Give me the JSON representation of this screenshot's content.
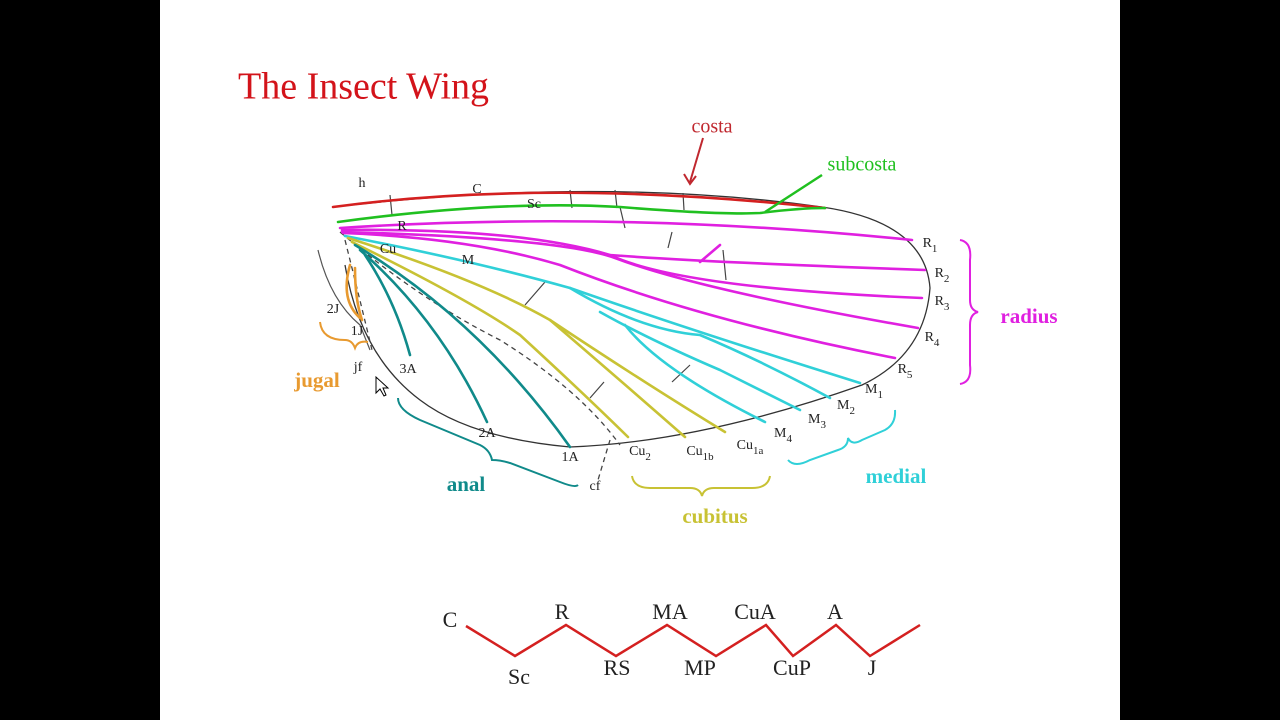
{
  "title": "The Insect Wing",
  "callouts": [
    "costa",
    "subcosta"
  ],
  "vein_groups": [
    "radius",
    "jugal",
    "anal",
    "cubitus",
    "medial"
  ],
  "wing_labels": [
    "h",
    "C",
    "Sc",
    "R",
    "M",
    "Cu",
    {
      "main": "R",
      "sub": "1"
    },
    {
      "main": "R",
      "sub": "2"
    },
    {
      "main": "R",
      "sub": "3"
    },
    {
      "main": "R",
      "sub": "4"
    },
    {
      "main": "R",
      "sub": "5"
    },
    {
      "main": "M",
      "sub": "1"
    },
    {
      "main": "M",
      "sub": "2"
    },
    {
      "main": "M",
      "sub": "3"
    },
    {
      "main": "M",
      "sub": "4"
    },
    {
      "main": "Cu",
      "sub": "1a"
    },
    {
      "main": "Cu",
      "sub": "1b"
    },
    {
      "main": "Cu",
      "sub": "2"
    },
    "1A",
    "2A",
    "3A",
    "1J",
    "2J",
    "jf",
    "cf"
  ],
  "sequence": [
    "C",
    "Sc",
    "R",
    "RS",
    "MA",
    "MP",
    "CuA",
    "CuP",
    "A",
    "J"
  ]
}
